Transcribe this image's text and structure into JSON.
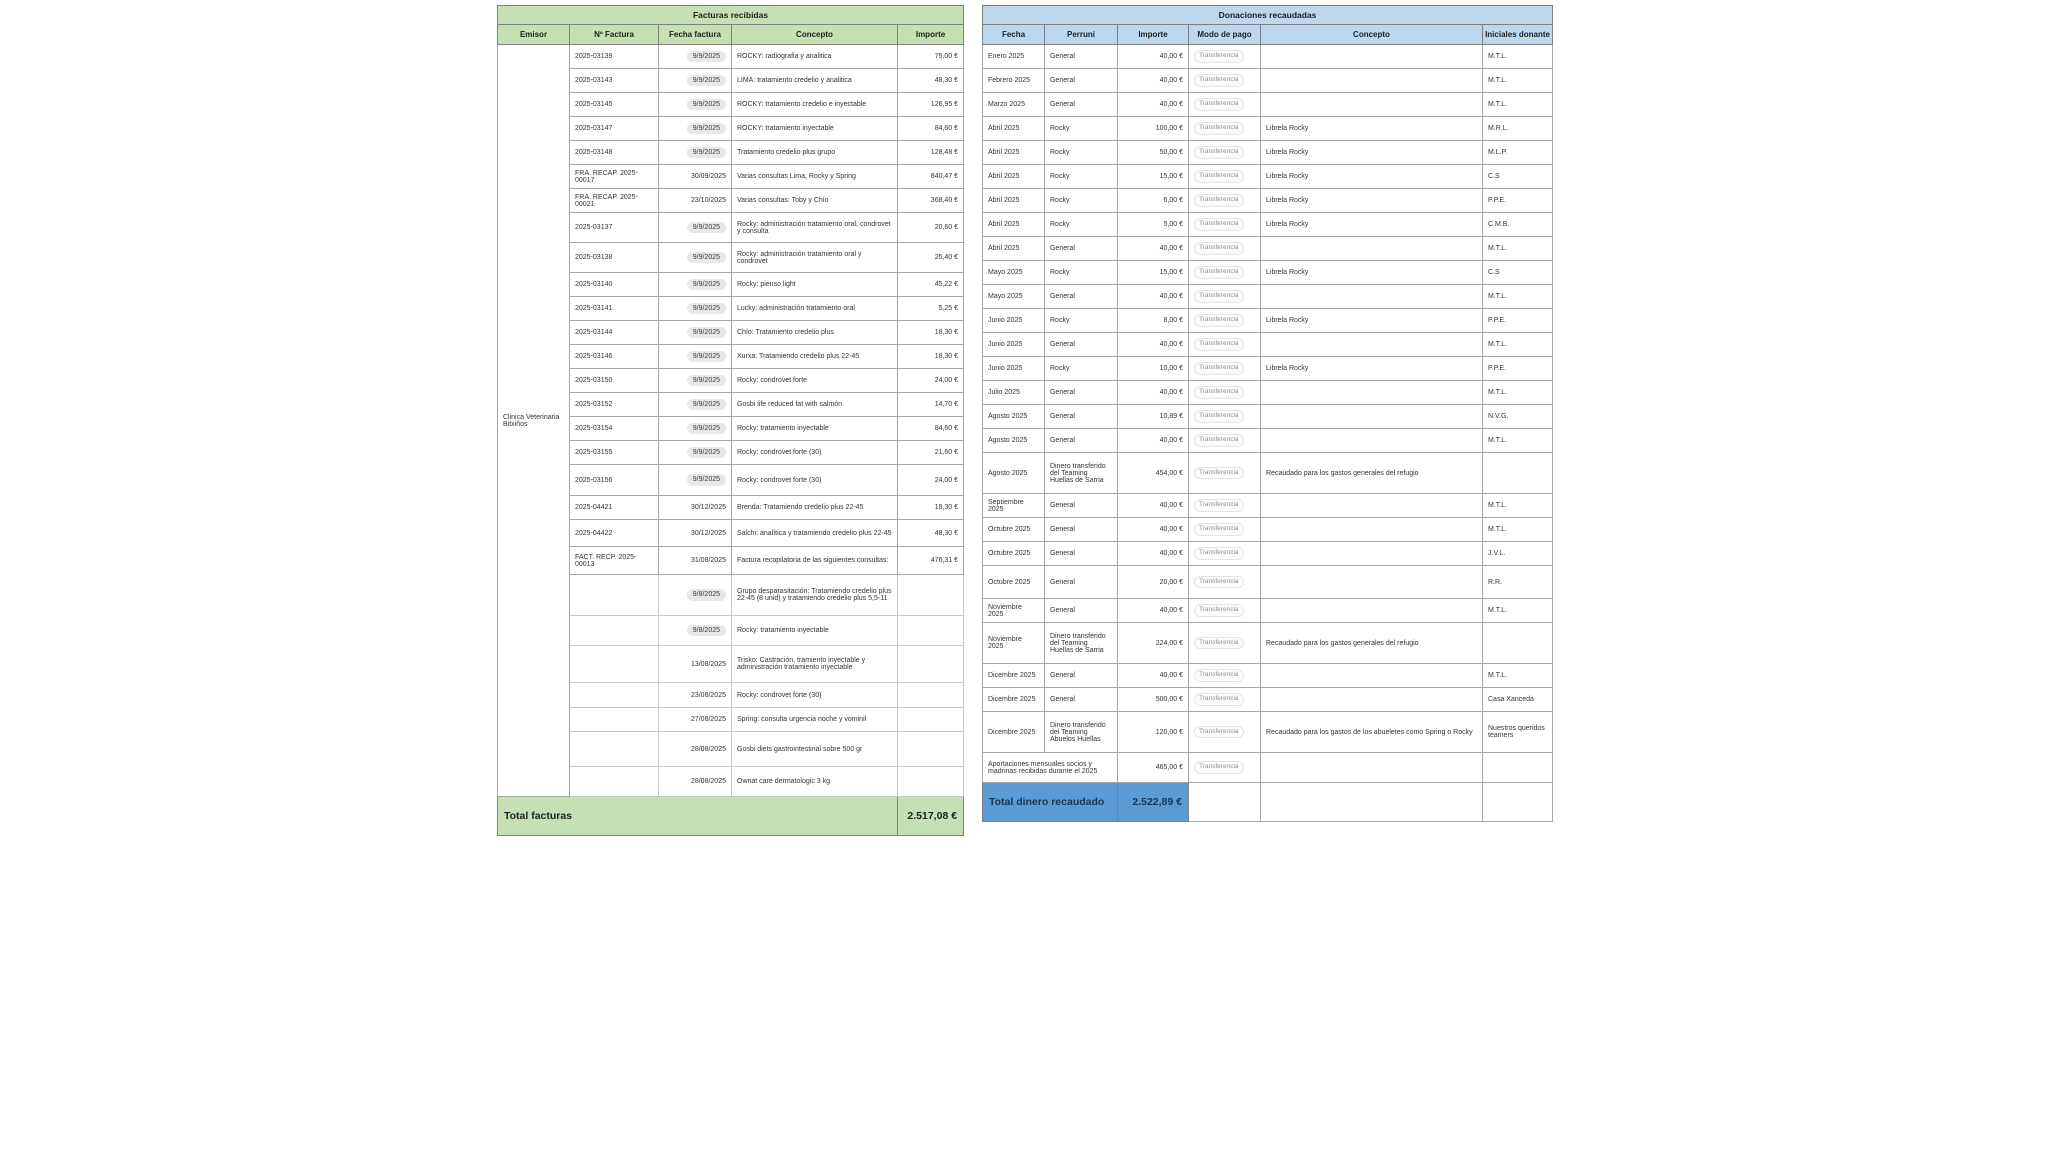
{
  "facturas": {
    "title": "Facturas recibidas",
    "emisor": "Clinica Veterinaria Bitxiños",
    "total_label": "Total facturas",
    "total_value": "2.517,08 €",
    "colors": {
      "header_bg": "#c6e0b4",
      "total_bg": "#c6e0b4",
      "date_pill_bg": "#e8e8e8"
    },
    "columns": [
      {
        "key": "emisor",
        "label": "Emisor",
        "merge": "emisor"
      },
      {
        "key": "num",
        "label": "Nº Factura"
      },
      {
        "key": "fecha",
        "label": "Fecha factura",
        "pill_flag": true,
        "chipClass": "date"
      },
      {
        "key": "concepto",
        "label": "Concepto"
      },
      {
        "key": "importe",
        "label": "Importe"
      }
    ],
    "rows": [
      {
        "num": "2025-03139",
        "fecha": "9/9/2025",
        "pill": true,
        "concepto": "ROCKY: radiografia y analitica",
        "importe": "75,00 €"
      },
      {
        "num": "2025-03143",
        "fecha": "9/9/2025",
        "pill": true,
        "concepto": "LIMA: tratamiento credelio y analitica",
        "importe": "48,30 €"
      },
      {
        "num": "2025-03145",
        "fecha": "9/9/2025",
        "pill": true,
        "concepto": "ROCKY: tratamiento credelio e inyectable",
        "importe": "126,95 €"
      },
      {
        "num": "2025-03147",
        "fecha": "9/9/2025",
        "pill": true,
        "concepto": "ROCKY: tratamiento inyectable",
        "importe": "84,60 €"
      },
      {
        "num": "2025-03148",
        "fecha": "9/9/2025",
        "pill": true,
        "concepto": "Tratamiento credelio plus grupo",
        "importe": "128,48 €"
      },
      {
        "num": "FRA. RECAP. 2025-00017",
        "fecha": "30/09/2025",
        "concepto": "Varias consultas Lima, Rocky y Spring",
        "importe": "840,47 €"
      },
      {
        "num": "FRA. RECAP. 2025-00021",
        "fecha": "23/10/2025",
        "concepto": "Varias consultas: Toby y Chío",
        "importe": "368,40 €"
      },
      {
        "num": "2025-03137",
        "fecha": "9/9/2025",
        "pill": true,
        "concepto": "Rocky: administración tratamiento oral, condrovet y consulta",
        "importe": "20,60 €"
      },
      {
        "num": "2025-03138",
        "fecha": "9/9/2025",
        "pill": true,
        "concepto": "Rocky: administración tratamiento oral y condrovet",
        "importe": "25,40 €"
      },
      {
        "num": "2025-03140",
        "fecha": "9/9/2025",
        "pill": true,
        "concepto": "Rocky: pienso light",
        "importe": "45,22 €"
      },
      {
        "num": "2025-03141",
        "fecha": "9/9/2025",
        "pill": true,
        "concepto": "Lucky: administración tratamiento oral",
        "importe": "5,25 €"
      },
      {
        "num": "2025-03144",
        "fecha": "9/9/2025",
        "pill": true,
        "concepto": "Chío: Tratamiento credelio plus",
        "importe": "18,30 €"
      },
      {
        "num": "2025-03146",
        "fecha": "9/9/2025",
        "pill": true,
        "concepto": "Xurxa: Tratamiendo credelio plus 22-45",
        "importe": "18,30 €"
      },
      {
        "num": "2025-03150",
        "fecha": "9/9/2025",
        "pill": true,
        "concepto": "Rocky: condrovet forte",
        "importe": "24,00 €"
      },
      {
        "num": "2025-03152",
        "fecha": "9/9/2025",
        "pill": true,
        "concepto": "Gosbi life reduced fat with salmón",
        "importe": "14,70 €"
      },
      {
        "num": "2025-03154",
        "fecha": "9/9/2025",
        "pill": true,
        "concepto": "Rocky: tratamiento inyectable",
        "importe": "84,60 €"
      },
      {
        "num": "2025-03155",
        "fecha": "9/9/2025",
        "pill": true,
        "concepto": "Rocky: condrovet forte (30)",
        "importe": "21,60 €"
      },
      {
        "num": "2025-03156",
        "fecha": "9/9/2025",
        "pill": true,
        "concepto": "Rocky: condrovet forte (30)",
        "importe": "24,00 €"
      },
      {
        "num": "2025-04421",
        "fecha": "30/12/2025",
        "concepto": "Brenda: Tratamiendo credelio plus 22-45",
        "importe": "18,30 €"
      },
      {
        "num": "2025-04422",
        "fecha": "30/12/2025",
        "concepto": "Salchi: analítica y tratamiendo credelio plus 22-45",
        "importe": "48,30 €"
      },
      {
        "num": "FACT. RECP. 2025-00013",
        "fecha": "31/08/2025",
        "concepto": "Factura recopilatoria de las siguientes consultas:",
        "importe": "476,31 €"
      },
      {
        "num": "",
        "fecha": "9/8/2025",
        "pill": true,
        "concepto": "Grupo desparasitación: Tratamiendo credelio plus 22-45 (8 unid) y tratamiendo credelio plus 5,5-11",
        "importe": ""
      },
      {
        "num": "",
        "fecha": "9/8/2025",
        "pill": true,
        "concepto": "Rocky: tratamiento inyectable",
        "importe": ""
      },
      {
        "num": "",
        "fecha": "13/08/2025",
        "concepto": "Trisko: Castración, tramiento inyectable y administración tratamiento inyectable",
        "importe": ""
      },
      {
        "num": "",
        "fecha": "23/08/2025",
        "concepto": "Rocky: condrovet forte (30)",
        "importe": ""
      },
      {
        "num": "",
        "fecha": "27/08/2025",
        "concepto": "Spring: consulta urgencia noche y vominil",
        "importe": ""
      },
      {
        "num": "",
        "fecha": "28/08/2025",
        "concepto": "Gosbi diets gastrointestinal sobre 500 gr",
        "importe": ""
      },
      {
        "num": "",
        "fecha": "28/08/2025",
        "concepto": "Ownat care dermatologic 3 kg",
        "importe": ""
      }
    ]
  },
  "donaciones": {
    "title": "Donaciones recaudadas",
    "total_label": "Total dinero recaudado",
    "total_value": "2.522,89 €",
    "colors": {
      "header_bg": "#bdd7ee",
      "total_bg": "#5b9bd5"
    },
    "columns": [
      {
        "key": "fecha",
        "label": "Fecha"
      },
      {
        "key": "perruni",
        "label": "Perruni"
      },
      {
        "key": "importe",
        "label": "Importe"
      },
      {
        "key": "modo",
        "label": "Modo de pago",
        "chip": true,
        "chipClass": "modo"
      },
      {
        "key": "concepto",
        "label": "Concepto"
      },
      {
        "key": "iniciales",
        "label": "Iniciales donante"
      }
    ],
    "rows": [
      {
        "fecha": "Enero 2025",
        "perruni": "General",
        "importe": "40,00 €",
        "modo": "Transferencia",
        "concepto": "",
        "iniciales": "M.T.L."
      },
      {
        "fecha": "Febrero 2025",
        "perruni": "General",
        "importe": "40,00 €",
        "modo": "Transferencia",
        "concepto": "",
        "iniciales": "M.T.L."
      },
      {
        "fecha": "Marzo 2025",
        "perruni": "General",
        "importe": "40,00 €",
        "modo": "Transferencia",
        "concepto": "",
        "iniciales": "M.T.L."
      },
      {
        "fecha": "Abril 2025",
        "perruni": "Rocky",
        "importe": "100,00 €",
        "modo": "Transferencia",
        "concepto": "Librela Rocky",
        "iniciales": "M.R.L."
      },
      {
        "fecha": "Abril 2025",
        "perruni": "Rocky",
        "importe": "50,00 €",
        "modo": "Transferencia",
        "concepto": "Librela Rocky",
        "iniciales": "M.L.P."
      },
      {
        "fecha": "Abril 2025",
        "perruni": "Rocky",
        "importe": "15,00 €",
        "modo": "Transferencia",
        "concepto": "Librela Rocky",
        "iniciales": "C.S"
      },
      {
        "fecha": "Abril 2025",
        "perruni": "Rocky",
        "importe": "6,00 €",
        "modo": "Transferencia",
        "concepto": "Librela Rocky",
        "iniciales": "P.P.E."
      },
      {
        "fecha": "Abril 2025",
        "perruni": "Rocky",
        "importe": "5,00 €",
        "modo": "Transferencia",
        "concepto": "Librela Rocky",
        "iniciales": "C.M.B."
      },
      {
        "fecha": "Abril 2025",
        "perruni": "General",
        "importe": "40,00 €",
        "modo": "Transferencia",
        "concepto": "",
        "iniciales": "M.T.L."
      },
      {
        "fecha": "Mayo 2025",
        "perruni": "Rocky",
        "importe": "15,00 €",
        "modo": "Transferencia",
        "concepto": "Librela Rocky",
        "iniciales": "C.S"
      },
      {
        "fecha": "Mayo 2025",
        "perruni": "General",
        "importe": "40,00 €",
        "modo": "Transferencia",
        "concepto": "",
        "iniciales": "M.T.L."
      },
      {
        "fecha": "Junio 2025",
        "perruni": "Rocky",
        "importe": "8,00 €",
        "modo": "Transferencia",
        "concepto": "Librela Rocky",
        "iniciales": "P.P.E."
      },
      {
        "fecha": "Junio 2025",
        "perruni": "General",
        "importe": "40,00 €",
        "modo": "Transferencia",
        "concepto": "",
        "iniciales": "M.T.L."
      },
      {
        "fecha": "Junio 2025",
        "perruni": "Rocky",
        "importe": "10,00 €",
        "modo": "Transferencia",
        "concepto": "Librela Rocky",
        "iniciales": "P.P.E."
      },
      {
        "fecha": "Julio 2025",
        "perruni": "General",
        "importe": "40,00 €",
        "modo": "Transferencia",
        "concepto": "",
        "iniciales": "M.T.L."
      },
      {
        "fecha": "Agosto 2025",
        "perruni": "General",
        "importe": "10,89 €",
        "modo": "Transferencia",
        "concepto": "",
        "iniciales": "N.V.G."
      },
      {
        "fecha": "Agosto 2025",
        "perruni": "General",
        "importe": "40,00 €",
        "modo": "Transferencia",
        "concepto": "",
        "iniciales": "M.T.L."
      },
      {
        "fecha": "Agosto 2025",
        "perruni": "Dinero transferido del Teaming Huellas de Sarria",
        "importe": "454,00 €",
        "modo": "Transferencia",
        "concepto": "Recaudado para los gastos generales del refugio",
        "iniciales": ""
      },
      {
        "fecha": "Septiembre 2025",
        "perruni": "General",
        "importe": "40,00 €",
        "modo": "Transferencia",
        "concepto": "",
        "iniciales": "M.T.L."
      },
      {
        "fecha": "Octubre 2025",
        "perruni": "General",
        "importe": "40,00 €",
        "modo": "Transferencia",
        "concepto": "",
        "iniciales": "M.T.L."
      },
      {
        "fecha": "Octubre 2025",
        "perruni": "General",
        "importe": "40,00 €",
        "modo": "Transferencia",
        "concepto": "",
        "iniciales": "J.V.L."
      },
      {
        "fecha": "Octubre 2025",
        "perruni": "General",
        "importe": "20,00 €",
        "modo": "Transferencia",
        "concepto": "",
        "iniciales": "R.R."
      },
      {
        "fecha": "Noviembre 2025",
        "perruni": "General",
        "importe": "40,00 €",
        "modo": "Transferencia",
        "concepto": "",
        "iniciales": "M.T.L."
      },
      {
        "fecha": "Noviembre 2025",
        "perruni": "Dinero transferido del Teaming Huellas de Sarria",
        "importe": "224,00 €",
        "modo": "Transferencia",
        "concepto": "Recaudado para los gastos generales del refugio",
        "iniciales": ""
      },
      {
        "fecha": "Dicembre 2025",
        "perruni": "General",
        "importe": "40,00 €",
        "modo": "Transferencia",
        "concepto": "",
        "iniciales": "M.T.L."
      },
      {
        "fecha": "Dicembre 2025",
        "perruni": "General",
        "importe": "500,00 €",
        "modo": "Transferencia",
        "concepto": "",
        "iniciales": "Casa Xanceda"
      },
      {
        "fecha": "Dicembre 2025",
        "perruni": "Dinero transferido del Teaming Abuelos Huellas",
        "importe": "120,00 €",
        "modo": "Transferencia",
        "concepto": "Recaudado para los gastos de los abueletes como Spring o Rocky",
        "iniciales": "Nuestros queridos teamers"
      },
      {
        "fecha": "Aportaciones mensuales socios y madrinas recibidas durante el 2025",
        "colspan": {
          "fecha": 2
        },
        "skip": [
          "perruni"
        ],
        "importe": "465,00 €",
        "modo": "Transferencia",
        "concepto": "",
        "iniciales": ""
      }
    ]
  }
}
